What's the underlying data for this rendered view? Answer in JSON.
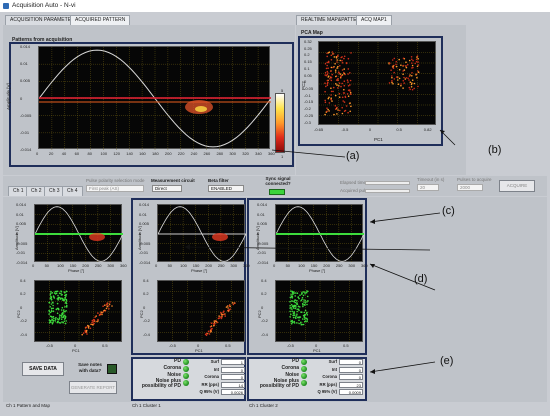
{
  "window": {
    "title": "Acquisition Auto - N-vi"
  },
  "tabs_left": [
    "ACQUISITION PARAMETERS",
    "ACQUIRED PATTERN"
  ],
  "tabs_right": [
    "REALTIME MAP&PATTERN",
    "ACQ MAP1"
  ],
  "pattern": {
    "title": "Patterns from acquisition",
    "ylabel": "Amplitude [V]",
    "xticks": [
      "0",
      "20",
      "40",
      "60",
      "80",
      "100",
      "120",
      "140",
      "160",
      "180",
      "200",
      "220",
      "240",
      "260",
      "280",
      "300",
      "320",
      "340",
      "360"
    ],
    "yticks": [
      "0.014",
      "0.01",
      "0.005",
      "0",
      "-0.005",
      "-0.01",
      "-0.014"
    ]
  },
  "colorbar": {
    "top": "5",
    "bottom": "1"
  },
  "pca": {
    "title": "PCA Map",
    "xlabel": "PC1",
    "ylabel": "PC2",
    "xticks": [
      "-0.65",
      "-0.5",
      "0",
      "0.5",
      "0.82"
    ],
    "yticks": [
      "0.32",
      "0.25",
      "0.2",
      "0.15",
      "0.1",
      "0.05",
      "0",
      "-0.05",
      "-0.1",
      "-0.15",
      "-0.2",
      "-0.25",
      "-0.3"
    ]
  },
  "channels": [
    "Ch 1",
    "Ch 2",
    "Ch 3",
    "Ch 4"
  ],
  "controls": {
    "pulse_mode_label": "Pulse polarity selection mode",
    "pulse_mode_value": "First peak (AS)",
    "meas_label": "Measurement circuit",
    "meas_value": "Direct",
    "beta_label": "Beta filter",
    "beta_value": "ENABLED",
    "sync_label": "Sync signal connected?",
    "elapsed_label": "Elapsed time",
    "acq_pulses_label": "Acquired pulses",
    "timeout_label": "Timeout (in s)",
    "timeout_value": "20",
    "pulses_label": "Pulses to acquire",
    "pulses_value": "2000",
    "acquire_button": "ACQUIRE"
  },
  "small_plots": {
    "ylabel": "Amplitude [V]",
    "xlabel": "Phase [°]",
    "pc1": "PC1",
    "pc2": "PC2",
    "yticks": [
      "0.014",
      "0.01",
      "0.005",
      "0",
      "-0.005",
      "-0.01",
      "-0.014"
    ],
    "xticks": [
      "0",
      "50",
      "100",
      "150",
      "200",
      "250",
      "300",
      "360"
    ],
    "pc_xticks": [
      "-0.5",
      "0",
      "0.5"
    ],
    "pc_yticks": [
      "0.4",
      "0.2",
      "0",
      "-0.2",
      "-0.4"
    ]
  },
  "bottom": {
    "save_data": "SAVE DATA",
    "save_notes": "Save notes with data?",
    "generate_report": "GENERATE REPORT"
  },
  "cluster1": {
    "leds": [
      "PD",
      "Corona",
      "Noise",
      "Noise plus possibility of PD"
    ],
    "fields": [
      {
        "k": "Surf",
        "v": "1"
      },
      {
        "k": "Int",
        "v": "0"
      },
      {
        "k": "Corona",
        "v": "0"
      },
      {
        "k": "RR (pps)",
        "v": "14"
      },
      {
        "k": "Q 95% (V)",
        "v": "0.0026"
      }
    ]
  },
  "cluster2": {
    "leds": [
      "PD",
      "Corona",
      "Noise",
      "Noise plus possibility of PD"
    ],
    "fields": [
      {
        "k": "Surf",
        "v": "0"
      },
      {
        "k": "Int",
        "v": "0"
      },
      {
        "k": "Corona",
        "v": "0"
      },
      {
        "k": "RR (pps)",
        "v": "23"
      },
      {
        "k": "Q 95% (V)",
        "v": "0.0009"
      }
    ]
  },
  "footer": [
    "Ch 1 Pattern and Map",
    "Ch 1 Cluster 1",
    "Ch 1 Cluster 2"
  ],
  "callouts": {
    "a": "(a)",
    "b": "(b)",
    "c": "(c)",
    "d": "(d)",
    "e": "(e)"
  }
}
